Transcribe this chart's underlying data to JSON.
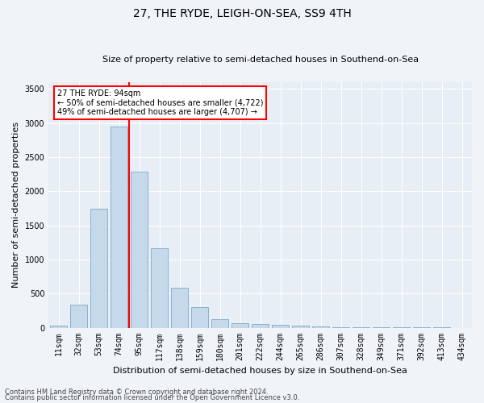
{
  "title": "27, THE RYDE, LEIGH-ON-SEA, SS9 4TH",
  "subtitle": "Size of property relative to semi-detached houses in Southend-on-Sea",
  "xlabel": "Distribution of semi-detached houses by size in Southend-on-Sea",
  "ylabel": "Number of semi-detached properties",
  "footnote1": "Contains HM Land Registry data © Crown copyright and database right 2024.",
  "footnote2": "Contains public sector information licensed under the Open Government Licence v3.0.",
  "annotation_title": "27 THE RYDE: 94sqm",
  "annotation_line1": "← 50% of semi-detached houses are smaller (4,722)",
  "annotation_line2": "49% of semi-detached houses are larger (4,707) →",
  "bar_color": "#c6d9ea",
  "bar_edge_color": "#7aaac8",
  "redline_color": "red",
  "bg_color": "#e8eef5",
  "fig_bg_color": "#f0f4f8",
  "grid_color": "#ffffff",
  "categories": [
    "11sqm",
    "32sqm",
    "53sqm",
    "74sqm",
    "95sqm",
    "117sqm",
    "138sqm",
    "159sqm",
    "180sqm",
    "201sqm",
    "222sqm",
    "244sqm",
    "265sqm",
    "286sqm",
    "307sqm",
    "328sqm",
    "349sqm",
    "371sqm",
    "392sqm",
    "413sqm",
    "434sqm"
  ],
  "values": [
    28,
    335,
    1750,
    2950,
    2290,
    1160,
    590,
    300,
    120,
    70,
    55,
    40,
    25,
    15,
    10,
    5,
    3,
    2,
    1,
    1,
    0
  ],
  "ylim": [
    0,
    3600
  ],
  "yticks": [
    0,
    500,
    1000,
    1500,
    2000,
    2500,
    3000,
    3500
  ],
  "redline_bar_index": 4,
  "title_fontsize": 10,
  "subtitle_fontsize": 8,
  "xlabel_fontsize": 8,
  "ylabel_fontsize": 8,
  "tick_fontsize": 7,
  "footnote_fontsize": 6
}
